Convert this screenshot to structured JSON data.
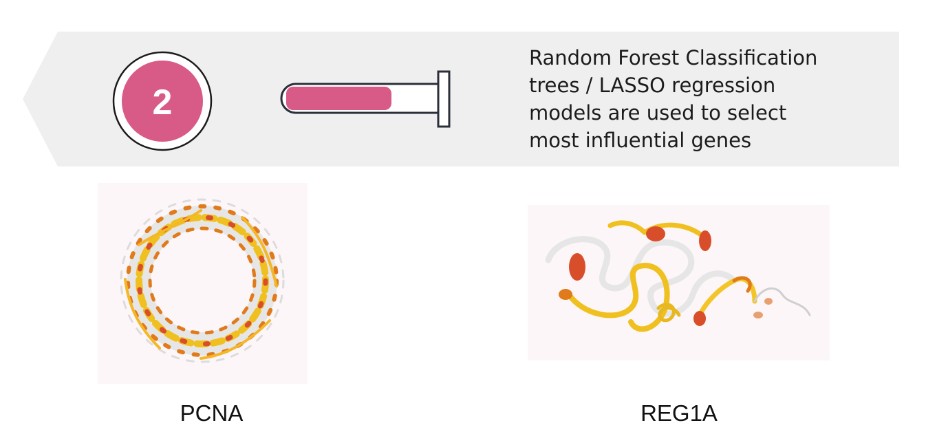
{
  "step": {
    "number": "2",
    "description": "Random Forest Classification\ntrees / LASSO regression\nmodels are used to select\nmost influential genes",
    "progress_fraction": 0.6
  },
  "colors": {
    "banner": "#efefef",
    "accent": "#d85a86",
    "outline": "#2b2f3a",
    "panel": "#fcf6f8",
    "ribbon_yellow": "#f0c020",
    "ribbon_orange": "#e07a1a",
    "ribbon_red": "#d94e2a",
    "ribbon_white": "#e6e6e6"
  },
  "proteins": [
    {
      "name": "PCNA",
      "icon": "protein-ring-structure"
    },
    {
      "name": "REG1A",
      "icon": "protein-ribbon-structure"
    }
  ]
}
